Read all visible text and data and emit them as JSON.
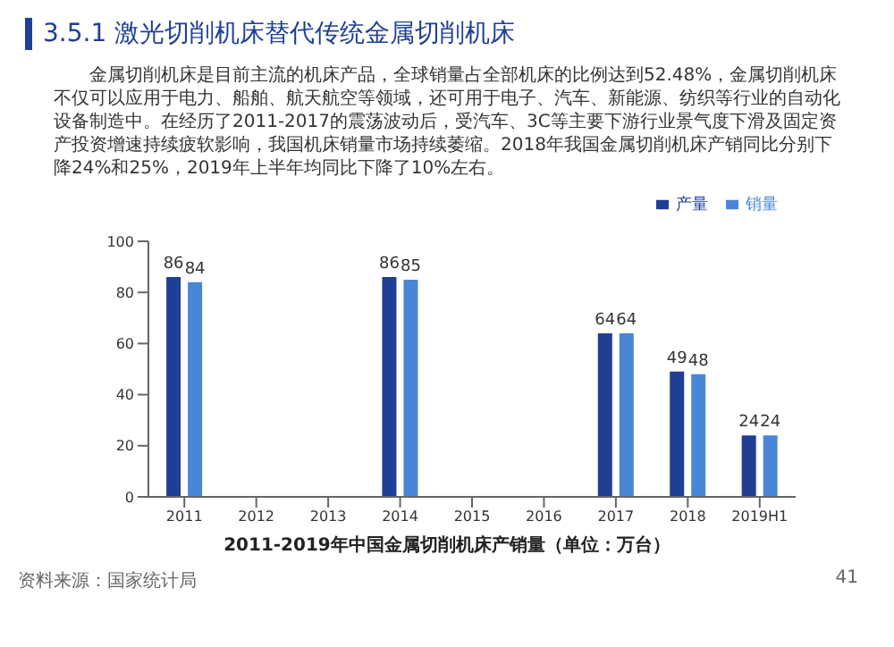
{
  "chart_data": {
    "type": "bar",
    "title": "3.5.1 激光切削机床替代传统金属切削机床",
    "subtitle": "金属切削机床是目前主流的机床产品，全球销量占全部机床的比例达到52.48%，金属切削机床不仅可以应用于电力、船舶、航天航空等领域，还可用于电子、汽车、新能源、纺织等行业的自动化设备制造中。在经历了2011-2017的震荡波动后，受汽车、3C等主要下游行业景气度下滑及固定资产投资增速持续疲软影响，我国机床销量市场持续萎缩。2018年我国金属切削机床产销同比分别下降24%和25%，2019年上半年均同比下降了10%左右。",
    "xlabel": "2011-2019年中国金属切削机床产销量（单位：万台）",
    "annotations": [
      "资料来源：国家统计局",
      "41"
    ],
    "categories": [
      "2011",
      "2012",
      "2013",
      "2014",
      "2015",
      "2016",
      "2017",
      "2018",
      "2019H1"
    ],
    "series": [
      {
        "name": "产量",
        "color": "#1f3f94",
        "values": [
          86,
          null,
          null,
          86,
          null,
          null,
          64,
          49,
          24
        ],
        "value_labels": [
          "86",
          null,
          null,
          "86",
          null,
          null,
          "64",
          "49",
          "24"
        ]
      },
      {
        "name": "销量",
        "color": "#4a86d8",
        "values": [
          84,
          null,
          null,
          85,
          null,
          null,
          64,
          48,
          24
        ],
        "value_labels": [
          "84",
          null,
          null,
          "85",
          null,
          null,
          "64",
          "48",
          "24"
        ]
      }
    ],
    "ylim": [
      0,
      100
    ],
    "yticks": [
      0,
      20,
      40,
      60,
      80,
      100
    ],
    "grid": false,
    "legend": "top right"
  }
}
